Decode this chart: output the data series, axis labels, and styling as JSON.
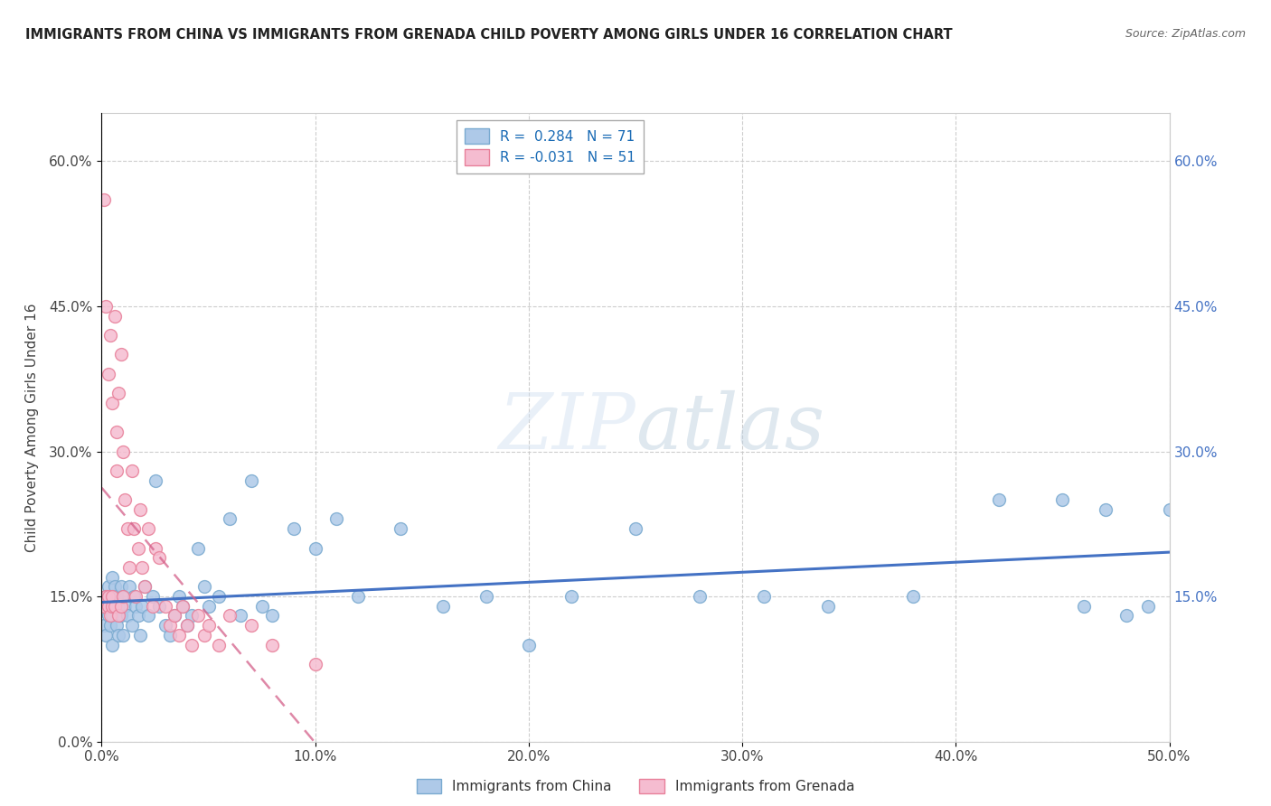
{
  "title": "IMMIGRANTS FROM CHINA VS IMMIGRANTS FROM GRENADA CHILD POVERTY AMONG GIRLS UNDER 16 CORRELATION CHART",
  "source": "Source: ZipAtlas.com",
  "ylabel": "Child Poverty Among Girls Under 16",
  "xmin": 0.0,
  "xmax": 0.5,
  "ymin": 0.0,
  "ymax": 0.65,
  "yticks": [
    0.0,
    0.15,
    0.3,
    0.45,
    0.6
  ],
  "xticks": [
    0.0,
    0.1,
    0.2,
    0.3,
    0.4,
    0.5
  ],
  "right_yticks": [
    0.15,
    0.3,
    0.45,
    0.6
  ],
  "china_color": "#aec9e8",
  "grenada_color": "#f5bcd0",
  "china_edge_color": "#7aaad0",
  "grenada_edge_color": "#e8809a",
  "china_line_color": "#4472c4",
  "grenada_line_color": "#d4608a",
  "R_china": 0.284,
  "N_china": 71,
  "R_grenada": -0.031,
  "N_grenada": 51,
  "legend_color": "#1a6bb5",
  "background_color": "#ffffff",
  "grid_color": "#c8c8c8",
  "watermark_text": "ZIPatlas",
  "china_scatter_x": [
    0.001,
    0.002,
    0.002,
    0.003,
    0.003,
    0.004,
    0.004,
    0.005,
    0.005,
    0.005,
    0.006,
    0.006,
    0.007,
    0.007,
    0.008,
    0.008,
    0.009,
    0.009,
    0.01,
    0.01,
    0.011,
    0.012,
    0.013,
    0.014,
    0.015,
    0.016,
    0.017,
    0.018,
    0.019,
    0.02,
    0.022,
    0.024,
    0.025,
    0.027,
    0.03,
    0.032,
    0.034,
    0.036,
    0.038,
    0.04,
    0.042,
    0.045,
    0.048,
    0.05,
    0.055,
    0.06,
    0.065,
    0.07,
    0.075,
    0.08,
    0.09,
    0.1,
    0.11,
    0.12,
    0.14,
    0.16,
    0.18,
    0.2,
    0.22,
    0.25,
    0.28,
    0.31,
    0.34,
    0.38,
    0.42,
    0.45,
    0.46,
    0.47,
    0.48,
    0.49,
    0.5
  ],
  "china_scatter_y": [
    0.12,
    0.15,
    0.11,
    0.16,
    0.13,
    0.14,
    0.12,
    0.17,
    0.13,
    0.1,
    0.16,
    0.14,
    0.15,
    0.12,
    0.14,
    0.11,
    0.16,
    0.13,
    0.15,
    0.11,
    0.14,
    0.13,
    0.16,
    0.12,
    0.15,
    0.14,
    0.13,
    0.11,
    0.14,
    0.16,
    0.13,
    0.15,
    0.27,
    0.14,
    0.12,
    0.11,
    0.13,
    0.15,
    0.14,
    0.12,
    0.13,
    0.2,
    0.16,
    0.14,
    0.15,
    0.23,
    0.13,
    0.27,
    0.14,
    0.13,
    0.22,
    0.2,
    0.23,
    0.15,
    0.22,
    0.14,
    0.15,
    0.1,
    0.15,
    0.22,
    0.15,
    0.15,
    0.14,
    0.15,
    0.25,
    0.25,
    0.14,
    0.24,
    0.13,
    0.14,
    0.24
  ],
  "grenada_scatter_x": [
    0.001,
    0.001,
    0.002,
    0.002,
    0.003,
    0.003,
    0.003,
    0.004,
    0.004,
    0.005,
    0.005,
    0.005,
    0.006,
    0.006,
    0.007,
    0.007,
    0.008,
    0.008,
    0.009,
    0.009,
    0.01,
    0.01,
    0.011,
    0.012,
    0.013,
    0.014,
    0.015,
    0.016,
    0.017,
    0.018,
    0.019,
    0.02,
    0.022,
    0.024,
    0.025,
    0.027,
    0.03,
    0.032,
    0.034,
    0.036,
    0.038,
    0.04,
    0.042,
    0.045,
    0.048,
    0.05,
    0.055,
    0.06,
    0.07,
    0.08,
    0.1
  ],
  "grenada_scatter_y": [
    0.56,
    0.14,
    0.45,
    0.15,
    0.38,
    0.14,
    0.15,
    0.42,
    0.13,
    0.35,
    0.14,
    0.15,
    0.44,
    0.14,
    0.28,
    0.32,
    0.36,
    0.13,
    0.4,
    0.14,
    0.3,
    0.15,
    0.25,
    0.22,
    0.18,
    0.28,
    0.22,
    0.15,
    0.2,
    0.24,
    0.18,
    0.16,
    0.22,
    0.14,
    0.2,
    0.19,
    0.14,
    0.12,
    0.13,
    0.11,
    0.14,
    0.12,
    0.1,
    0.13,
    0.11,
    0.12,
    0.1,
    0.13,
    0.12,
    0.1,
    0.08
  ]
}
